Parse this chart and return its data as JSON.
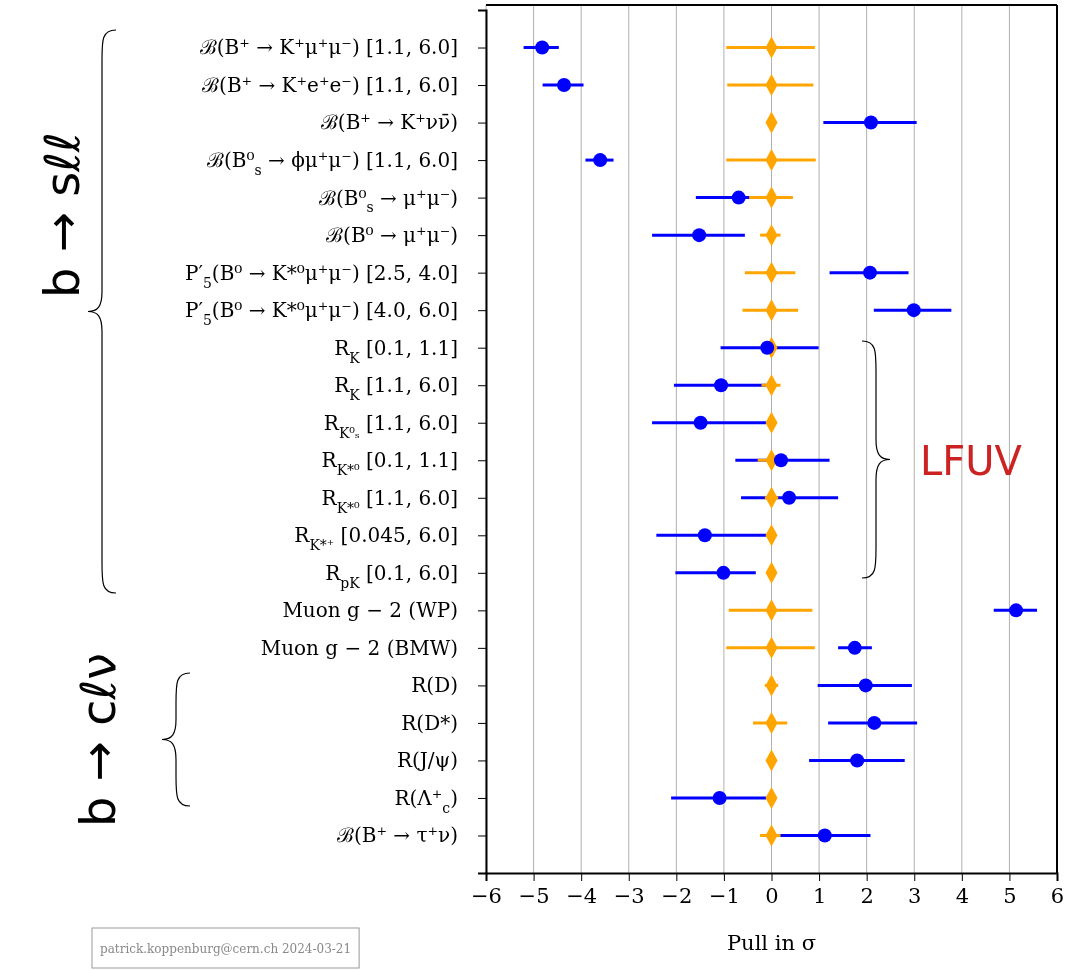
{
  "chart_data": {
    "type": "scatter",
    "orientation": "horizontal",
    "xlabel": "Pull in σ",
    "categories": [
      null,
      "ℬ(B⁺ → K⁺μ⁺μ⁻) [1.1, 6.0]",
      "ℬ(B⁺ → K⁺e⁺e⁻) [1.1, 6.0]",
      "ℬ(B⁺ → K⁺νν̄)",
      "ℬ(B⁰$_{s}$ → ϕμ⁺μ⁻) [1.1, 6.0]",
      "ℬ(B⁰$_{s}$ → μ⁺μ⁻)",
      "ℬ(B⁰ → μ⁺μ⁻)",
      "P′$_{5}$(B⁰ → K*⁰μ⁺μ⁻) [2.5, 4.0]",
      "P′$_{5}$(B⁰ → K*⁰μ⁺μ⁻) [4.0, 6.0]",
      "R$_{K}$ [0.1, 1.1]",
      "R$_{K}$ [1.1, 6.0]",
      "R$_{K⁰ₛ}$ [1.1, 6.0]",
      "R$_{K*⁰}$ [0.1, 1.1]",
      "R$_{K*⁰}$ [1.1, 6.0]",
      "R$_{K*⁺}$ [0.045, 6.0]",
      "R$_{pK}$ [0.1, 6.0]",
      "Muon g − 2 (WP)",
      "Muon g − 2 (BMW)",
      "R(D)",
      "R(D*)",
      "R(J/ψ)",
      "R(Λ⁺$_{c}$)",
      "ℬ(B⁺ → τ⁺ν)",
      null
    ],
    "series": [
      {
        "color": "#ffa500",
        "marker": "diamond",
        "values": [
          null,
          0,
          0,
          0,
          0,
          0,
          0,
          0,
          0,
          0,
          0,
          0,
          0,
          0,
          0,
          0,
          0,
          0,
          0,
          0,
          0,
          0,
          0,
          null
        ],
        "errors": [
          null,
          [
            -0.95,
            0.91
          ],
          [
            -0.93,
            0.88
          ],
          null,
          [
            -0.95,
            0.93
          ],
          [
            -0.47,
            0.45
          ],
          [
            -0.24,
            0.19
          ],
          [
            -0.56,
            0.5
          ],
          [
            -0.61,
            0.56
          ],
          null,
          [
            -0.21,
            0.19
          ],
          null,
          [
            -0.29,
            0.29
          ],
          [
            -0.14,
            0.14
          ],
          null,
          null,
          [
            -0.9,
            0.86
          ],
          [
            -0.95,
            0.91
          ],
          [
            -0.14,
            0.14
          ],
          [
            -0.39,
            0.33
          ],
          null,
          null,
          [
            -0.24,
            0.19
          ],
          null
        ]
      },
      {
        "color": "#0000ff",
        "marker": "circle",
        "values": [
          null,
          -4.82,
          -4.36,
          2.09,
          -3.6,
          -0.69,
          -1.52,
          2.07,
          2.99,
          -0.09,
          -1.06,
          -1.49,
          0.2,
          0.37,
          -1.4,
          -1.01,
          5.14,
          1.75,
          1.98,
          2.16,
          1.8,
          -1.09,
          1.12,
          null
        ],
        "errors": [
          null,
          [
            -5.21,
            -4.47
          ],
          [
            -4.81,
            -3.95
          ],
          [
            1.09,
            3.05
          ],
          [
            -3.91,
            -3.32
          ],
          [
            -1.59,
            0.19
          ],
          [
            -2.51,
            -0.56
          ],
          [
            1.22,
            2.88
          ],
          [
            2.15,
            3.78
          ],
          [
            -1.07,
            0.99
          ],
          [
            -2.05,
            -0.11
          ],
          [
            -2.51,
            -0.11
          ],
          [
            -0.76,
            1.22
          ],
          [
            -0.64,
            1.4
          ],
          [
            -2.42,
            -0.11
          ],
          [
            -2.02,
            -0.33
          ],
          [
            4.67,
            5.58
          ],
          [
            1.4,
            2.11
          ],
          [
            0.97,
            2.95
          ],
          [
            1.19,
            3.06
          ],
          [
            0.79,
            2.8
          ],
          [
            -2.11,
            -0.11
          ],
          [
            0.13,
            2.08
          ],
          null
        ]
      }
    ],
    "xlim": [
      -6,
      6
    ],
    "xticks": [
      {
        "value": -6,
        "label": "−6"
      },
      {
        "value": -5,
        "label": "−5"
      },
      {
        "value": -4,
        "label": "−4"
      },
      {
        "value": -3,
        "label": "−3"
      },
      {
        "value": -2,
        "label": "−2"
      },
      {
        "value": -1,
        "label": "−1"
      },
      0,
      1,
      2,
      3,
      4,
      5,
      6
    ],
    "grid": "x",
    "annotations": [
      "b → sℓℓ",
      "b → cℓν",
      "LFUV",
      "patrick.koppenburg@cern.ch 2024-03-21"
    ]
  }
}
